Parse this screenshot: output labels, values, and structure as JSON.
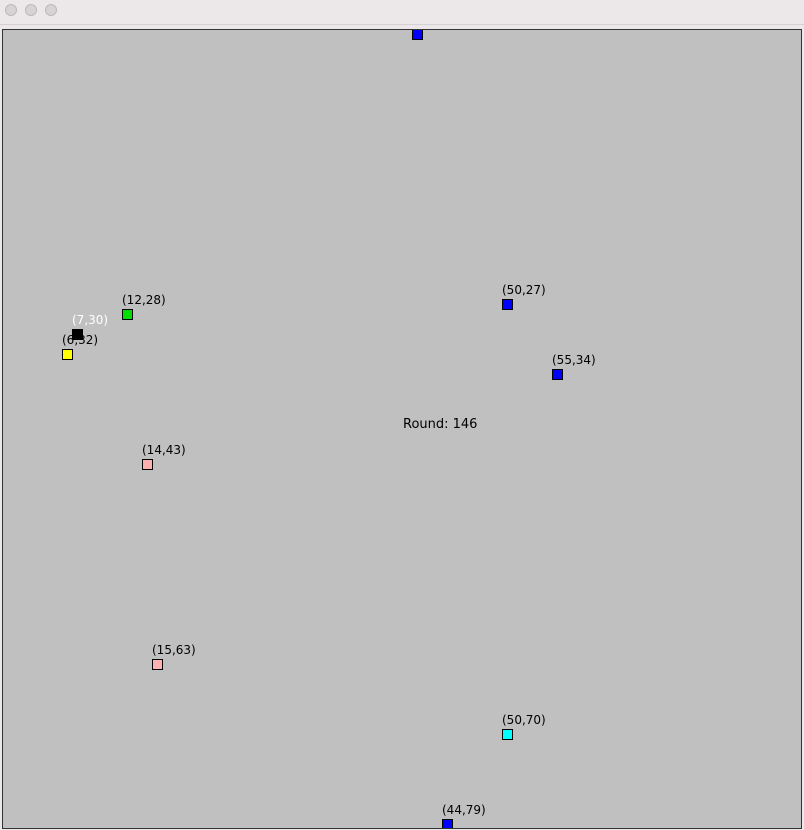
{
  "window": {
    "title": ""
  },
  "board": {
    "background": "#c0c0c0",
    "round_label": "Round: 146"
  },
  "agents": [
    {
      "label": "",
      "color": "#0000ff",
      "text_color": "#000000"
    },
    {
      "label": "(50,27)",
      "color": "#0000ff",
      "text_color": "#000000"
    },
    {
      "label": "(12,28)",
      "color": "#00dd00",
      "text_color": "#000000"
    },
    {
      "label": "(7,30)",
      "color": "#000000",
      "text_color": "#ffffff"
    },
    {
      "label": "(6,32)",
      "color": "#ffff00",
      "text_color": "#000000"
    },
    {
      "label": "(55,34)",
      "color": "#0000ff",
      "text_color": "#000000"
    },
    {
      "label": "(14,43)",
      "color": "#ffb0b0",
      "text_color": "#000000"
    },
    {
      "label": "(15,63)",
      "color": "#ffb0b0",
      "text_color": "#000000"
    },
    {
      "label": "(50,70)",
      "color": "#00ffff",
      "text_color": "#000000"
    },
    {
      "label": "(44,79)",
      "color": "#0000ff",
      "text_color": "#000000"
    }
  ]
}
